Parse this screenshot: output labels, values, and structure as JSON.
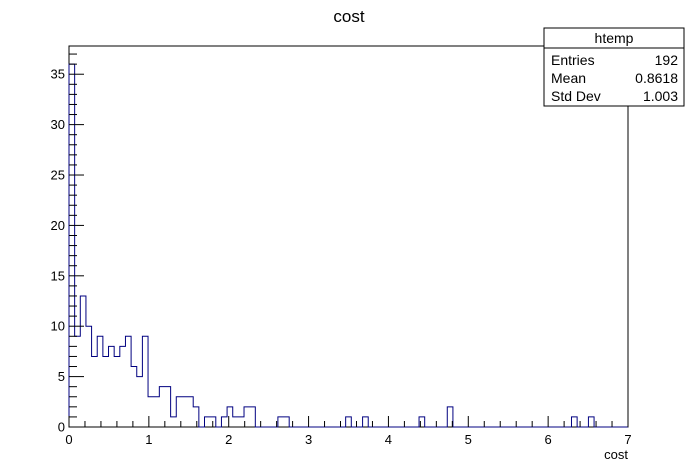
{
  "chart_data": {
    "type": "bar",
    "histogram": true,
    "title": "cost",
    "xlabel": "cost",
    "ylabel": "",
    "xlim": [
      0,
      7
    ],
    "ylim": [
      0,
      37.8
    ],
    "x_ticks": [
      0,
      1,
      2,
      3,
      4,
      5,
      6,
      7
    ],
    "y_ticks": [
      0,
      5,
      10,
      15,
      20,
      25,
      30,
      35
    ],
    "grid": false,
    "bin_width": 0.0707,
    "series": [
      {
        "color": "#000080",
        "values": [
          36,
          9,
          13,
          10,
          7,
          9,
          7,
          8,
          7,
          8,
          9,
          6,
          5,
          9,
          3,
          3,
          4,
          4,
          1,
          3,
          3,
          3,
          2,
          0,
          1,
          1,
          0,
          1,
          2,
          1,
          1,
          2,
          2,
          0,
          0,
          0,
          0,
          1,
          1,
          0,
          0,
          0,
          0,
          0,
          0,
          0,
          0,
          0,
          0,
          1,
          0,
          0,
          1,
          0,
          0,
          0,
          0,
          0,
          0,
          0,
          0,
          0,
          1,
          0,
          0,
          0,
          0,
          2,
          0,
          0,
          0,
          0,
          0,
          0,
          0,
          0,
          0,
          0,
          0,
          0,
          0,
          0,
          0,
          0,
          0,
          0,
          0,
          0,
          0,
          1,
          0,
          0,
          1,
          0,
          0,
          0,
          0,
          0,
          0
        ]
      }
    ],
    "stats_box": {
      "name": "htemp",
      "rows": [
        {
          "label": "Entries",
          "value": "192"
        },
        {
          "label": "Mean",
          "value": "0.8618"
        },
        {
          "label": "Std Dev",
          "value": "1.003"
        }
      ]
    }
  }
}
